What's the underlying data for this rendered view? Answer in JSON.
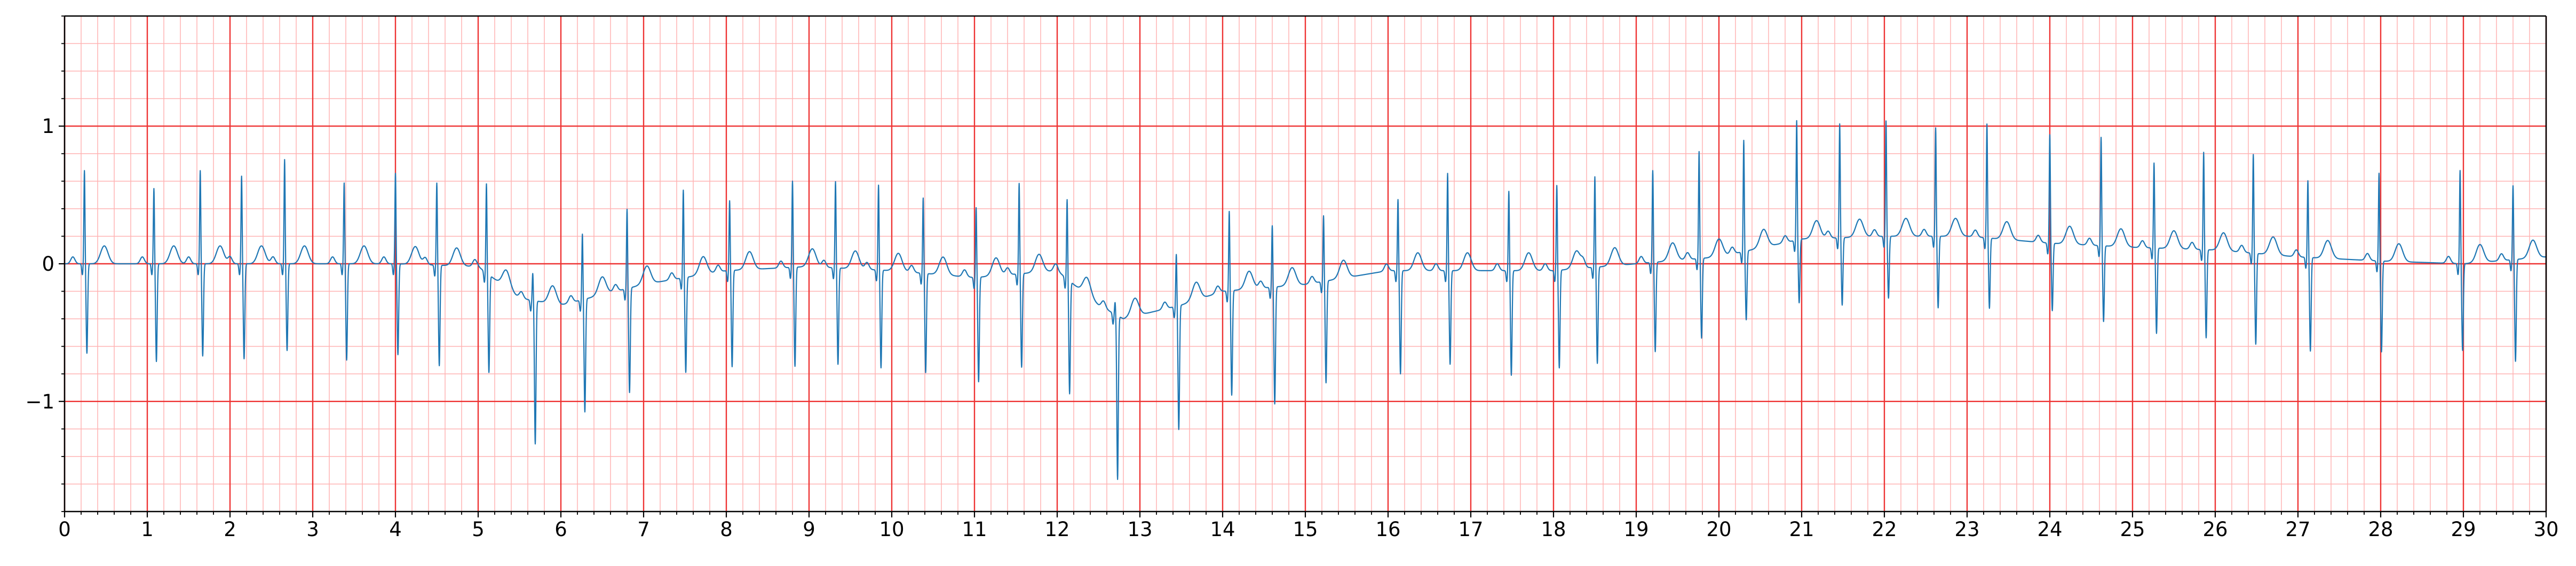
{
  "chart_data": {
    "type": "line",
    "title": "",
    "xlabel": "",
    "ylabel": "",
    "xlim": [
      0,
      30
    ],
    "ylim": [
      -1.8,
      1.8
    ],
    "x_ticks": [
      "0",
      "1",
      "2",
      "3",
      "4",
      "5",
      "6",
      "7",
      "8",
      "9",
      "10",
      "11",
      "12",
      "13",
      "14",
      "15",
      "16",
      "17",
      "18",
      "19",
      "20",
      "21",
      "22",
      "23",
      "24",
      "25",
      "26",
      "27",
      "28",
      "29",
      "30"
    ],
    "y_ticks": [
      {
        "value": -1,
        "label": "−1"
      },
      {
        "value": 0,
        "label": "0"
      },
      {
        "value": 1,
        "label": "1"
      }
    ],
    "grid": {
      "major": true,
      "minor": true
    },
    "major_grid_step": {
      "x": 1,
      "y": 1
    },
    "minor_grid_step": {
      "x": 0.2,
      "y": 0.2
    },
    "minor_tick_step": {
      "x": 0.2,
      "y": 0.2
    },
    "colors": {
      "trace": "#1f77b4",
      "major_grid": "#ee3333",
      "minor_grid": "#ffb3b3",
      "axes": "#000000"
    },
    "series": [
      {
        "beats_t": [
          0.24,
          1.08,
          1.64,
          2.14,
          2.66,
          3.38,
          4.0,
          4.5,
          5.1,
          5.66,
          6.26,
          6.8,
          7.48,
          8.04,
          8.8,
          9.32,
          9.84,
          10.38,
          11.02,
          11.54,
          12.12,
          12.7,
          13.44,
          14.08,
          14.6,
          15.22,
          16.12,
          16.72,
          17.46,
          18.04,
          18.5,
          19.2,
          19.76,
          20.3,
          20.94,
          21.46,
          22.02,
          22.62,
          23.24,
          24.0,
          24.62,
          25.26,
          25.86,
          26.46,
          27.12,
          27.98,
          28.96,
          29.6
        ],
        "beats_r": [
          0.68,
          0.55,
          0.68,
          0.64,
          0.76,
          0.59,
          0.66,
          0.6,
          0.65,
          0.2,
          0.48,
          0.58,
          0.64,
          0.51,
          0.63,
          0.63,
          0.62,
          0.55,
          0.51,
          0.66,
          0.58,
          0.09,
          0.38,
          0.58,
          0.45,
          0.48,
          0.52,
          0.71,
          0.58,
          0.62,
          0.66,
          0.67,
          0.78,
          0.81,
          0.87,
          0.83,
          0.84,
          0.79,
          0.83,
          0.79,
          0.79,
          0.62,
          0.71,
          0.72,
          0.56,
          0.64,
          0.68,
          0.54
        ],
        "beats_s": [
          -0.65,
          -0.71,
          -0.67,
          -0.69,
          -0.63,
          -0.7,
          -0.66,
          -0.73,
          -0.71,
          -1.04,
          -0.82,
          -0.76,
          -0.69,
          -0.7,
          -0.72,
          -0.7,
          -0.71,
          -0.72,
          -0.76,
          -0.68,
          -0.82,
          -1.19,
          -0.9,
          -0.76,
          -0.85,
          -0.74,
          -0.75,
          -0.68,
          -0.76,
          -0.71,
          -0.7,
          -0.65,
          -0.58,
          -0.5,
          -0.46,
          -0.49,
          -0.45,
          -0.52,
          -0.51,
          -0.49,
          -0.55,
          -0.62,
          -0.64,
          -0.66,
          -0.68,
          -0.66,
          -0.63,
          -0.74
        ],
        "baseline_t": [
          0,
          2,
          4,
          5,
          5.5,
          6,
          7,
          8,
          9,
          10,
          11,
          12,
          12.5,
          12.8,
          13.5,
          14,
          15,
          16,
          17,
          18,
          19,
          20,
          21,
          22,
          23,
          24,
          25,
          26,
          27,
          28,
          29,
          30
        ],
        "baseline_v": [
          0,
          0,
          0,
          -0.02,
          -0.25,
          -0.3,
          -0.15,
          -0.05,
          -0.02,
          -0.05,
          -0.1,
          -0.05,
          -0.3,
          -0.4,
          -0.3,
          -0.2,
          -0.15,
          -0.05,
          -0.05,
          -0.05,
          0,
          0.05,
          0.18,
          0.2,
          0.2,
          0.15,
          0.12,
          0.1,
          0.05,
          0.02,
          0,
          0.05
        ]
      }
    ]
  }
}
